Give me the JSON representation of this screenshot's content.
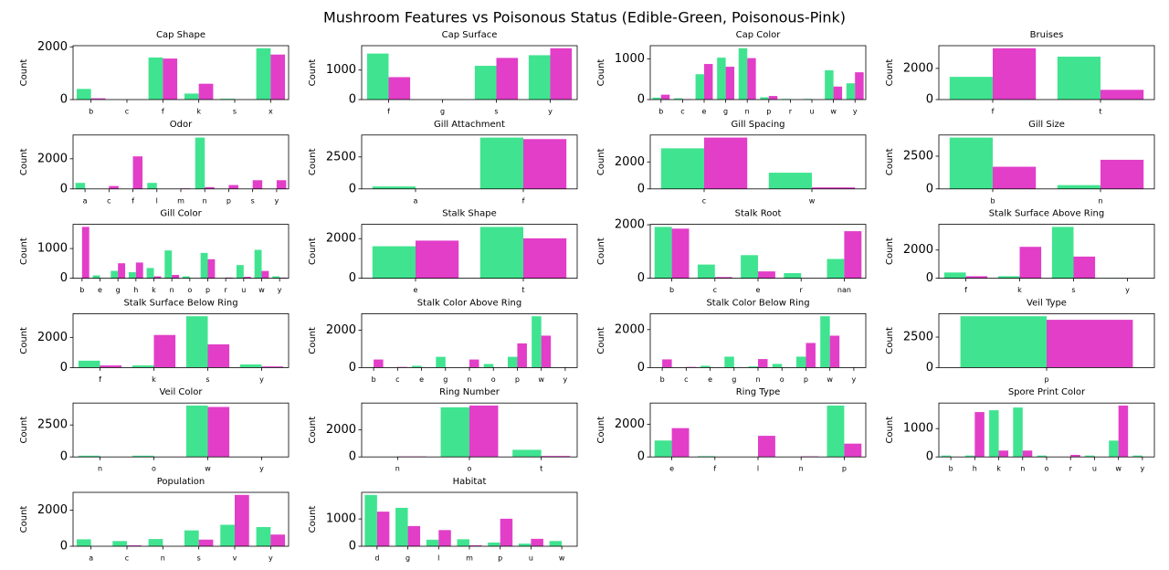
{
  "title": "Mushroom Features vs Poisonous Status (Edible-Green, Poisonous-Pink)",
  "chart_data": [
    {
      "type": "bar",
      "title": "Cap Shape",
      "ylabel": "Count",
      "categories": [
        "b",
        "c",
        "f",
        "k",
        "s",
        "x"
      ],
      "series": [
        {
          "color": "#40e490",
          "values": [
            404,
            0,
            1596,
            228,
            32,
            1948
          ]
        },
        {
          "color": "#e23ec8",
          "values": [
            48,
            4,
            1556,
            600,
            0,
            1708
          ]
        }
      ],
      "ylim": [
        0,
        2045
      ],
      "yticks": [
        0,
        2000
      ]
    },
    {
      "type": "bar",
      "title": "Cap Surface",
      "ylabel": "Count",
      "categories": [
        "f",
        "g",
        "s",
        "y"
      ],
      "series": [
        {
          "color": "#40e490",
          "values": [
            1560,
            0,
            1144,
            1504
          ]
        },
        {
          "color": "#e23ec8",
          "values": [
            760,
            4,
            1412,
            1740
          ]
        }
      ],
      "ylim": [
        0,
        1827
      ],
      "yticks": [
        0,
        1000
      ]
    },
    {
      "type": "bar",
      "title": "Cap Color",
      "ylabel": "Count",
      "categories": [
        "b",
        "c",
        "e",
        "g",
        "n",
        "p",
        "r",
        "u",
        "w",
        "y"
      ],
      "series": [
        {
          "color": "#40e490",
          "values": [
            48,
            32,
            624,
            1032,
            1264,
            56,
            16,
            16,
            720,
            400
          ]
        },
        {
          "color": "#e23ec8",
          "values": [
            120,
            12,
            876,
            808,
            1020,
            88,
            0,
            0,
            320,
            672
          ]
        }
      ],
      "ylim": [
        0,
        1327
      ],
      "yticks": [
        0,
        1000
      ]
    },
    {
      "type": "bar",
      "title": "Bruises",
      "ylabel": "Count",
      "categories": [
        "f",
        "t"
      ],
      "series": [
        {
          "color": "#40e490",
          "values": [
            1456,
            2752
          ]
        },
        {
          "color": "#e23ec8",
          "values": [
            3292,
            624
          ]
        }
      ],
      "ylim": [
        0,
        3457
      ],
      "yticks": [
        0,
        2000
      ]
    },
    {
      "type": "bar",
      "title": "Odor",
      "ylabel": "Count",
      "categories": [
        "a",
        "c",
        "f",
        "l",
        "m",
        "n",
        "p",
        "s",
        "y"
      ],
      "series": [
        {
          "color": "#40e490",
          "values": [
            400,
            0,
            0,
            400,
            0,
            3408,
            0,
            0,
            0
          ]
        },
        {
          "color": "#e23ec8",
          "values": [
            0,
            192,
            2160,
            0,
            36,
            120,
            256,
            576,
            576
          ]
        }
      ],
      "ylim": [
        0,
        3578
      ],
      "yticks": [
        0,
        2000
      ]
    },
    {
      "type": "bar",
      "title": "Gill Attachment",
      "ylabel": "Count",
      "categories": [
        "a",
        "f"
      ],
      "series": [
        {
          "color": "#40e490",
          "values": [
            192,
            4016
          ]
        },
        {
          "color": "#e23ec8",
          "values": [
            18,
            3898
          ]
        }
      ],
      "ylim": [
        0,
        4217
      ],
      "yticks": [
        0,
        2500
      ]
    },
    {
      "type": "bar",
      "title": "Gill Spacing",
      "ylabel": "Count",
      "categories": [
        "c",
        "w"
      ],
      "series": [
        {
          "color": "#40e490",
          "values": [
            3008,
            1200
          ]
        },
        {
          "color": "#e23ec8",
          "values": [
            3804,
            112
          ]
        }
      ],
      "ylim": [
        0,
        3994
      ],
      "yticks": [
        0,
        2000
      ]
    },
    {
      "type": "bar",
      "title": "Gill Size",
      "ylabel": "Count",
      "categories": [
        "b",
        "n"
      ],
      "series": [
        {
          "color": "#40e490",
          "values": [
            3920,
            288
          ]
        },
        {
          "color": "#e23ec8",
          "values": [
            1692,
            2224
          ]
        }
      ],
      "ylim": [
        0,
        4116
      ],
      "yticks": [
        0,
        2500
      ]
    },
    {
      "type": "bar",
      "title": "Gill Color",
      "ylabel": "Count",
      "categories": [
        "b",
        "e",
        "g",
        "h",
        "k",
        "n",
        "o",
        "p",
        "r",
        "u",
        "w",
        "y"
      ],
      "series": [
        {
          "color": "#40e490",
          "values": [
            0,
            96,
            248,
            204,
            344,
            936,
            64,
            852,
            0,
            444,
            956,
            64
          ]
        },
        {
          "color": "#e23ec8",
          "values": [
            1728,
            0,
            504,
            528,
            64,
            112,
            0,
            640,
            24,
            48,
            246,
            22
          ]
        }
      ],
      "ylim": [
        0,
        1814
      ],
      "yticks": [
        0,
        1000
      ]
    },
    {
      "type": "bar",
      "title": "Stalk Shape",
      "ylabel": "Count",
      "categories": [
        "e",
        "t"
      ],
      "series": [
        {
          "color": "#40e490",
          "values": [
            1616,
            2592
          ]
        },
        {
          "color": "#e23ec8",
          "values": [
            1900,
            2016
          ]
        }
      ],
      "ylim": [
        0,
        2722
      ],
      "yticks": [
        0,
        2000
      ]
    },
    {
      "type": "bar",
      "title": "Stalk Root",
      "ylabel": "Count",
      "categories": [
        "b",
        "c",
        "e",
        "r",
        "nan"
      ],
      "series": [
        {
          "color": "#40e490",
          "values": [
            1920,
            512,
            864,
            192,
            720
          ]
        },
        {
          "color": "#e23ec8",
          "values": [
            1856,
            44,
            256,
            0,
            1760
          ]
        }
      ],
      "ylim": [
        0,
        2016
      ],
      "yticks": [
        0,
        2000
      ]
    },
    {
      "type": "bar",
      "title": "Stalk Surface Above Ring",
      "ylabel": "Count",
      "categories": [
        "f",
        "k",
        "s",
        "y"
      ],
      "series": [
        {
          "color": "#40e490",
          "values": [
            408,
            144,
            3640,
            16
          ]
        },
        {
          "color": "#e23ec8",
          "values": [
            144,
            2228,
            1536,
            8
          ]
        }
      ],
      "ylim": [
        0,
        3822
      ],
      "yticks": [
        0,
        2000
      ]
    },
    {
      "type": "bar",
      "title": "Stalk Surface Below Ring",
      "ylabel": "Count",
      "categories": [
        "f",
        "k",
        "s",
        "y"
      ],
      "series": [
        {
          "color": "#40e490",
          "values": [
            456,
            144,
            3400,
            208
          ]
        },
        {
          "color": "#e23ec8",
          "values": [
            144,
            2160,
            1536,
            76
          ]
        }
      ],
      "ylim": [
        0,
        3570
      ],
      "yticks": [
        0,
        2000
      ]
    },
    {
      "type": "bar",
      "title": "Stalk Color Above Ring",
      "ylabel": "Count",
      "categories": [
        "b",
        "c",
        "e",
        "g",
        "n",
        "o",
        "p",
        "w",
        "y"
      ],
      "series": [
        {
          "color": "#40e490",
          "values": [
            0,
            0,
            96,
            576,
            16,
            192,
            576,
            2752,
            0
          ]
        },
        {
          "color": "#e23ec8",
          "values": [
            432,
            36,
            0,
            0,
            432,
            0,
            1296,
            1712,
            8
          ]
        }
      ],
      "ylim": [
        0,
        2890
      ],
      "yticks": [
        0,
        2000
      ]
    },
    {
      "type": "bar",
      "title": "Stalk Color Below Ring",
      "ylabel": "Count",
      "categories": [
        "b",
        "c",
        "e",
        "g",
        "n",
        "o",
        "p",
        "w",
        "y"
      ],
      "series": [
        {
          "color": "#40e490",
          "values": [
            0,
            0,
            96,
            576,
            64,
            192,
            576,
            2704,
            0
          ]
        },
        {
          "color": "#e23ec8",
          "values": [
            432,
            36,
            0,
            0,
            448,
            0,
            1296,
            1680,
            24
          ]
        }
      ],
      "ylim": [
        0,
        2839
      ],
      "yticks": [
        0,
        2000
      ]
    },
    {
      "type": "bar",
      "title": "Veil Type",
      "ylabel": "Count",
      "categories": [
        "p"
      ],
      "series": [
        {
          "color": "#40e490",
          "values": [
            4208
          ]
        },
        {
          "color": "#e23ec8",
          "values": [
            3916
          ]
        }
      ],
      "ylim": [
        0,
        4418
      ],
      "yticks": [
        0,
        2500
      ]
    },
    {
      "type": "bar",
      "title": "Veil Color",
      "ylabel": "Count",
      "categories": [
        "n",
        "o",
        "w",
        "y"
      ],
      "series": [
        {
          "color": "#40e490",
          "values": [
            96,
            96,
            4016,
            0
          ]
        },
        {
          "color": "#e23ec8",
          "values": [
            0,
            0,
            3908,
            8
          ]
        }
      ],
      "ylim": [
        0,
        4217
      ],
      "yticks": [
        0,
        2500
      ]
    },
    {
      "type": "bar",
      "title": "Ring Number",
      "ylabel": "Count",
      "categories": [
        "n",
        "o",
        "t"
      ],
      "series": [
        {
          "color": "#40e490",
          "values": [
            0,
            3680,
            528
          ]
        },
        {
          "color": "#e23ec8",
          "values": [
            36,
            3808,
            72
          ]
        }
      ],
      "ylim": [
        0,
        3998
      ],
      "yticks": [
        0,
        2000
      ]
    },
    {
      "type": "bar",
      "title": "Ring Type",
      "ylabel": "Count",
      "categories": [
        "e",
        "f",
        "l",
        "n",
        "p"
      ],
      "series": [
        {
          "color": "#40e490",
          "values": [
            1008,
            48,
            0,
            0,
            3152
          ]
        },
        {
          "color": "#e23ec8",
          "values": [
            1768,
            0,
            1296,
            36,
            816
          ]
        }
      ],
      "ylim": [
        0,
        3310
      ],
      "yticks": [
        0,
        2000
      ]
    },
    {
      "type": "bar",
      "title": "Spore Print Color",
      "ylabel": "Count",
      "categories": [
        "b",
        "h",
        "k",
        "n",
        "o",
        "r",
        "u",
        "w",
        "y"
      ],
      "series": [
        {
          "color": "#40e490",
          "values": [
            48,
            48,
            1648,
            1744,
            48,
            0,
            48,
            576,
            48
          ]
        },
        {
          "color": "#e23ec8",
          "values": [
            0,
            1584,
            224,
            224,
            0,
            72,
            0,
            1812,
            0
          ]
        }
      ],
      "ylim": [
        0,
        1903
      ],
      "yticks": [
        0,
        1000
      ]
    },
    {
      "type": "bar",
      "title": "Population",
      "ylabel": "Count",
      "categories": [
        "a",
        "c",
        "n",
        "s",
        "v",
        "y"
      ],
      "series": [
        {
          "color": "#40e490",
          "values": [
            384,
            288,
            400,
            880,
            1192,
            1064
          ]
        },
        {
          "color": "#e23ec8",
          "values": [
            0,
            52,
            0,
            368,
            2848,
            648
          ]
        }
      ],
      "ylim": [
        0,
        2990
      ],
      "yticks": [
        0,
        2000
      ]
    },
    {
      "type": "bar",
      "title": "Habitat",
      "ylabel": "Count",
      "categories": [
        "d",
        "g",
        "l",
        "m",
        "p",
        "u",
        "w"
      ],
      "series": [
        {
          "color": "#40e490",
          "values": [
            1880,
            1408,
            240,
            256,
            136,
            96,
            192
          ]
        },
        {
          "color": "#e23ec8",
          "values": [
            1268,
            740,
            592,
            36,
            1008,
            272,
            0
          ]
        }
      ],
      "ylim": [
        0,
        1974
      ],
      "yticks": [
        0,
        1000
      ]
    }
  ]
}
